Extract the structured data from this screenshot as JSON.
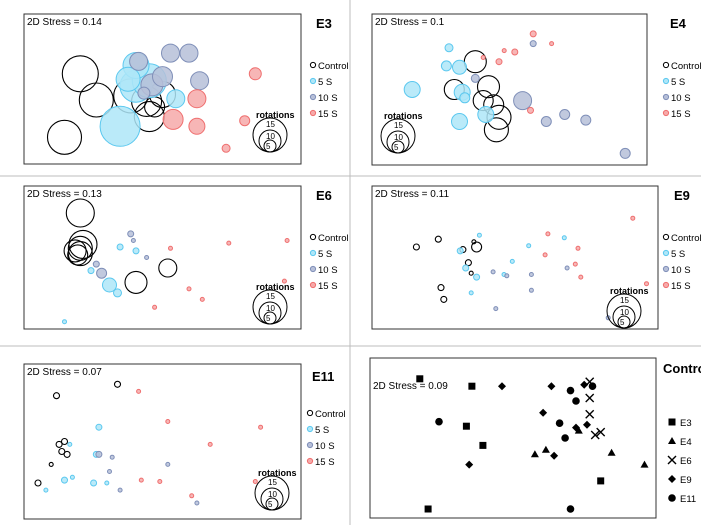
{
  "colors": {
    "control": "#000000",
    "s5": "#5bc8ef",
    "s10": "#7f8fb8",
    "s15": "#ef6f6f",
    "s5_fill": "#aee6f8",
    "s10_fill": "#b6bfd8",
    "s15_fill": "#f6a9a9",
    "divider": "#bcbcbc",
    "frame": "#333333"
  },
  "legend_labels": [
    "Control",
    "5 S",
    "10 S",
    "15 S"
  ],
  "size_legend": {
    "title": "rotations",
    "values": [
      "15",
      "10",
      "5"
    ]
  },
  "chart_data": [
    {
      "type": "scatter",
      "title": "E3",
      "stress": "2D Stress = 0.14",
      "show_size_legend": true,
      "size_legend_pos": "right",
      "groups": [
        {
          "group": "Control",
          "points": [
            [
              0.19,
              0.39,
              18
            ],
            [
              0.25,
              0.58,
              17
            ],
            [
              0.38,
              0.55,
              17
            ],
            [
              0.44,
              0.59,
              15
            ],
            [
              0.45,
              0.7,
              15
            ],
            [
              0.5,
              0.54,
              13
            ],
            [
              0.47,
              0.63,
              10
            ],
            [
              0.13,
              0.85,
              17
            ]
          ]
        },
        {
          "group": "5 S",
          "points": [
            [
              0.34,
              0.77,
              20
            ],
            [
              0.4,
              0.48,
              16
            ],
            [
              0.45,
              0.44,
              17
            ],
            [
              0.4,
              0.33,
              13
            ],
            [
              0.37,
              0.43,
              12
            ],
            [
              0.55,
              0.57,
              9
            ]
          ]
        },
        {
          "group": "10 S",
          "points": [
            [
              0.41,
              0.3,
              9
            ],
            [
              0.46,
              0.47,
              11
            ],
            [
              0.5,
              0.41,
              10
            ],
            [
              0.53,
              0.24,
              9
            ],
            [
              0.6,
              0.24,
              9
            ],
            [
              0.64,
              0.44,
              9
            ],
            [
              0.43,
              0.53,
              6
            ]
          ]
        },
        {
          "group": "15 S",
          "points": [
            [
              0.54,
              0.72,
              10
            ],
            [
              0.63,
              0.57,
              9
            ],
            [
              0.63,
              0.77,
              8
            ],
            [
              0.85,
              0.39,
              6
            ],
            [
              0.81,
              0.73,
              5
            ],
            [
              0.74,
              0.93,
              4
            ]
          ]
        }
      ]
    },
    {
      "type": "scatter",
      "title": "E4",
      "stress": "2D Stress = 0.1",
      "show_size_legend": true,
      "size_legend_pos": "left",
      "groups": [
        {
          "group": "Control",
          "points": [
            [
              0.29,
              0.5,
              10
            ],
            [
              0.37,
              0.3,
              11
            ],
            [
              0.42,
              0.48,
              11
            ],
            [
              0.44,
              0.61,
              10
            ],
            [
              0.4,
              0.58,
              10
            ],
            [
              0.46,
              0.7,
              12
            ],
            [
              0.45,
              0.79,
              12
            ]
          ]
        },
        {
          "group": "5 S",
          "points": [
            [
              0.13,
              0.5,
              8
            ],
            [
              0.27,
              0.2,
              4
            ],
            [
              0.31,
              0.34,
              7
            ],
            [
              0.32,
              0.52,
              8
            ],
            [
              0.31,
              0.73,
              8
            ],
            [
              0.33,
              0.56,
              5
            ],
            [
              0.41,
              0.68,
              8
            ],
            [
              0.26,
              0.33,
              5
            ]
          ]
        },
        {
          "group": "10 S",
          "points": [
            [
              0.55,
              0.58,
              9
            ],
            [
              0.59,
              0.17,
              3
            ],
            [
              0.64,
              0.73,
              5
            ],
            [
              0.71,
              0.68,
              5
            ],
            [
              0.79,
              0.72,
              5
            ],
            [
              0.94,
              0.96,
              5
            ],
            [
              0.37,
              0.42,
              4
            ]
          ]
        },
        {
          "group": "15 S",
          "points": [
            [
              0.52,
              0.23,
              3
            ],
            [
              0.59,
              0.1,
              3
            ],
            [
              0.66,
              0.17,
              2
            ],
            [
              0.58,
              0.65,
              3
            ],
            [
              0.46,
              0.3,
              3
            ],
            [
              0.4,
              0.27,
              2
            ],
            [
              0.48,
              0.22,
              2
            ]
          ]
        }
      ]
    },
    {
      "type": "scatter",
      "title": "E6",
      "stress": "2D Stress = 0.13",
      "show_size_legend": true,
      "size_legend_pos": "right",
      "groups": [
        {
          "group": "Control",
          "points": [
            [
              0.19,
              0.16,
              14
            ],
            [
              0.2,
              0.4,
              14
            ],
            [
              0.17,
              0.45,
              11
            ],
            [
              0.19,
              0.43,
              12
            ],
            [
              0.19,
              0.47,
              12
            ],
            [
              0.18,
              0.48,
              10
            ],
            [
              0.52,
              0.58,
              9
            ],
            [
              0.4,
              0.69,
              11
            ]
          ]
        },
        {
          "group": "5 S",
          "points": [
            [
              0.3,
              0.71,
              7
            ],
            [
              0.33,
              0.77,
              4
            ],
            [
              0.34,
              0.42,
              3
            ],
            [
              0.4,
              0.45,
              3
            ],
            [
              0.23,
              0.6,
              3
            ],
            [
              0.13,
              0.99,
              2
            ]
          ]
        },
        {
          "group": "10 S",
          "points": [
            [
              0.27,
              0.62,
              5
            ],
            [
              0.25,
              0.55,
              3
            ],
            [
              0.38,
              0.32,
              3
            ],
            [
              0.39,
              0.37,
              2
            ],
            [
              0.44,
              0.5,
              2
            ]
          ]
        },
        {
          "group": "15 S",
          "points": [
            [
              0.53,
              0.43,
              2
            ],
            [
              0.65,
              0.82,
              2
            ],
            [
              0.75,
              0.39,
              2
            ],
            [
              0.97,
              0.37,
              2
            ],
            [
              0.6,
              0.74,
              2
            ],
            [
              0.47,
              0.88,
              2
            ],
            [
              0.96,
              0.68,
              2
            ]
          ]
        }
      ]
    },
    {
      "type": "scatter",
      "title": "E9",
      "stress": "2D Stress = 0.11",
      "show_size_legend": true,
      "size_legend_pos": "right",
      "groups": [
        {
          "group": "Control",
          "points": [
            [
              0.14,
              0.42,
              3
            ],
            [
              0.22,
              0.36,
              3
            ],
            [
              0.31,
              0.44,
              3
            ],
            [
              0.33,
              0.54,
              3
            ],
            [
              0.36,
              0.42,
              5
            ],
            [
              0.34,
              0.62,
              2
            ],
            [
              0.23,
              0.73,
              3
            ],
            [
              0.24,
              0.82,
              3
            ],
            [
              0.35,
              0.38,
              2
            ]
          ]
        },
        {
          "group": "5 S",
          "points": [
            [
              0.3,
              0.45,
              3
            ],
            [
              0.32,
              0.58,
              3
            ],
            [
              0.36,
              0.65,
              3
            ],
            [
              0.34,
              0.77,
              2
            ],
            [
              0.37,
              0.33,
              2
            ],
            [
              0.49,
              0.53,
              2
            ],
            [
              0.55,
              0.41,
              2
            ],
            [
              0.68,
              0.35,
              2
            ],
            [
              0.46,
              0.63,
              2
            ]
          ]
        },
        {
          "group": "10 S",
          "points": [
            [
              0.42,
              0.61,
              2
            ],
            [
              0.47,
              0.64,
              2
            ],
            [
              0.56,
              0.63,
              2
            ],
            [
              0.43,
              0.89,
              2
            ],
            [
              0.69,
              0.58,
              2
            ],
            [
              0.84,
              0.96,
              2
            ],
            [
              0.56,
              0.75,
              2
            ]
          ]
        },
        {
          "group": "15 S",
          "points": [
            [
              0.62,
              0.32,
              2
            ],
            [
              0.61,
              0.48,
              2
            ],
            [
              0.73,
              0.43,
              2
            ],
            [
              0.74,
              0.65,
              2
            ],
            [
              0.72,
              0.55,
              2
            ],
            [
              0.93,
              0.2,
              2
            ],
            [
              0.98,
              0.7,
              2
            ]
          ]
        }
      ]
    },
    {
      "type": "scatter",
      "title": "E11",
      "stress": "2D Stress = 0.07",
      "show_size_legend": true,
      "size_legend_pos": "right",
      "groups": [
        {
          "group": "Control",
          "points": [
            [
              0.1,
              0.18,
              3
            ],
            [
              0.33,
              0.1,
              3
            ],
            [
              0.11,
              0.52,
              3
            ],
            [
              0.13,
              0.5,
              3
            ],
            [
              0.12,
              0.57,
              3
            ],
            [
              0.14,
              0.59,
              3
            ],
            [
              0.03,
              0.79,
              3
            ],
            [
              0.08,
              0.66,
              2
            ]
          ]
        },
        {
          "group": "5 S",
          "points": [
            [
              0.26,
              0.4,
              3
            ],
            [
              0.13,
              0.77,
              3
            ],
            [
              0.16,
              0.75,
              2
            ],
            [
              0.24,
              0.79,
              3
            ],
            [
              0.29,
              0.79,
              2
            ],
            [
              0.06,
              0.84,
              2
            ],
            [
              0.25,
              0.59,
              3
            ],
            [
              0.15,
              0.52,
              2
            ]
          ]
        },
        {
          "group": "10 S",
          "points": [
            [
              0.31,
              0.61,
              2
            ],
            [
              0.26,
              0.59,
              3
            ],
            [
              0.34,
              0.84,
              2
            ],
            [
              0.3,
              0.71,
              2
            ],
            [
              0.52,
              0.66,
              2
            ],
            [
              0.63,
              0.93,
              2
            ]
          ]
        },
        {
          "group": "15 S",
          "points": [
            [
              0.41,
              0.15,
              2
            ],
            [
              0.52,
              0.36,
              2
            ],
            [
              0.68,
              0.52,
              2
            ],
            [
              0.87,
              0.4,
              2
            ],
            [
              0.42,
              0.77,
              2
            ],
            [
              0.49,
              0.78,
              2
            ],
            [
              0.85,
              0.78,
              2
            ],
            [
              0.61,
              0.88,
              2
            ]
          ]
        }
      ]
    },
    {
      "type": "scatter",
      "title": "Contro",
      "stress": "2D Stress = 0.09",
      "markers": {
        "E3": "square",
        "E4": "triangle",
        "E6": "cross",
        "E9": "diamond",
        "E11": "circle"
      },
      "legend_labels": [
        "E3",
        "E4",
        "E6",
        "E9",
        "E11"
      ],
      "groups": [
        {
          "group": "E3",
          "points": [
            [
              0.16,
              0.1
            ],
            [
              0.35,
              0.15
            ],
            [
              0.33,
              0.42
            ],
            [
              0.39,
              0.55
            ],
            [
              0.82,
              0.79
            ],
            [
              0.19,
              0.98
            ]
          ]
        },
        {
          "group": "E4",
          "points": [
            [
              0.58,
              0.61
            ],
            [
              0.62,
              0.58
            ],
            [
              0.74,
              0.45
            ],
            [
              0.86,
              0.6
            ],
            [
              0.98,
              0.68
            ]
          ]
        },
        {
          "group": "E6",
          "points": [
            [
              0.78,
              0.34
            ],
            [
              0.78,
              0.12
            ],
            [
              0.78,
              0.23
            ],
            [
              0.8,
              0.48
            ],
            [
              0.82,
              0.46
            ]
          ]
        },
        {
          "group": "E9",
          "points": [
            [
              0.46,
              0.15
            ],
            [
              0.64,
              0.15
            ],
            [
              0.61,
              0.33
            ],
            [
              0.76,
              0.14
            ],
            [
              0.34,
              0.68
            ],
            [
              0.65,
              0.62
            ],
            [
              0.73,
              0.43
            ],
            [
              0.77,
              0.41
            ]
          ]
        },
        {
          "group": "E11",
          "points": [
            [
              0.23,
              0.39
            ],
            [
              0.71,
              0.18
            ],
            [
              0.73,
              0.25
            ],
            [
              0.79,
              0.15
            ],
            [
              0.67,
              0.4
            ],
            [
              0.69,
              0.5
            ],
            [
              0.71,
              0.98
            ]
          ]
        }
      ]
    }
  ]
}
